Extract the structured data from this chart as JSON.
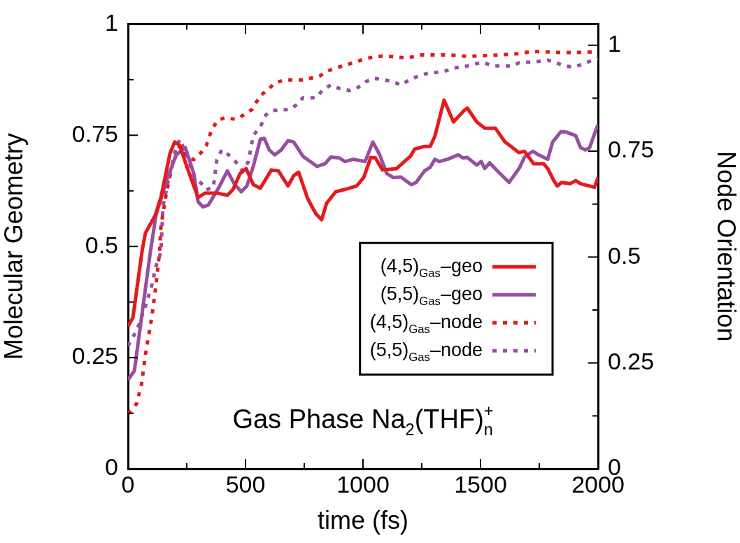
{
  "chart_data": {
    "type": "line",
    "title": "Gas Phase Na$_{2}$(THF)$_{n}$$^{+}$",
    "xlabel": "time (fs)",
    "ylabel": "Molecular Geometry",
    "y2label": "Node Orientation",
    "xlim": [
      0,
      2000
    ],
    "xticks": [
      0,
      {
        "value": 250,
        "label": null
      },
      500,
      {
        "value": 750,
        "label": null
      },
      1000,
      {
        "value": 1250,
        "label": null
      },
      1500,
      {
        "value": 1750,
        "label": null
      },
      2000
    ],
    "ylim": [
      0,
      1
    ],
    "yticks": [
      0,
      {
        "value": 0.125,
        "label": null
      },
      0.25,
      {
        "value": 0.375,
        "label": null
      },
      0.5,
      {
        "value": 0.625,
        "label": null
      },
      0.75,
      {
        "value": 0.875,
        "label": null
      },
      1
    ],
    "y2lim": [
      0,
      1.05
    ],
    "y2ticks": [
      0,
      {
        "value": 0.125,
        "label": null
      },
      0.25,
      {
        "value": 0.375,
        "label": null
      },
      0.5,
      {
        "value": 0.625,
        "label": null
      },
      0.75,
      {
        "value": 0.875,
        "label": null
      },
      1
    ],
    "grid": false,
    "legend": "right",
    "marker": "none",
    "series": [
      {
        "name": "(4,5)$_{Gas}$–geo",
        "color": "#e41a1c",
        "line_style": "solid",
        "x": [
          0,
          21,
          60,
          74,
          116,
          140,
          179,
          199,
          220,
          250,
          298,
          328,
          378,
          423,
          447,
          477,
          503,
          533,
          563,
          610,
          640,
          681,
          705,
          726,
          765,
          800,
          824,
          845,
          884,
          943,
          973,
          1003,
          1033,
          1053,
          1083,
          1143,
          1202,
          1220,
          1262,
          1286,
          1306,
          1345,
          1385,
          1429,
          1444,
          1484,
          1518,
          1563,
          1604,
          1637,
          1663,
          1687,
          1726,
          1768,
          1786,
          1812,
          1827,
          1845,
          1881,
          1905,
          1926,
          1985,
          2000
        ],
        "values": [
          0.32,
          0.34,
          0.49,
          0.53,
          0.57,
          0.61,
          0.71,
          0.735,
          0.727,
          0.68,
          0.61,
          0.62,
          0.62,
          0.615,
          0.628,
          0.664,
          0.675,
          0.639,
          0.631,
          0.672,
          0.67,
          0.636,
          0.659,
          0.667,
          0.607,
          0.573,
          0.56,
          0.597,
          0.623,
          0.631,
          0.636,
          0.655,
          0.7,
          0.699,
          0.672,
          0.675,
          0.703,
          0.719,
          0.725,
          0.725,
          0.748,
          0.829,
          0.78,
          0.805,
          0.811,
          0.78,
          0.766,
          0.766,
          0.735,
          0.722,
          0.711,
          0.714,
          0.686,
          0.686,
          0.675,
          0.648,
          0.636,
          0.644,
          0.641,
          0.648,
          0.641,
          0.633,
          0.655
        ]
      },
      {
        "name": "(5,5)$_{Gas}$–geo",
        "color": "#984ea3",
        "line_style": "solid",
        "x": [
          0,
          27,
          95,
          119,
          161,
          205,
          244,
          280,
          298,
          318,
          342,
          387,
          423,
          452,
          482,
          506,
          533,
          563,
          580,
          601,
          625,
          652,
          681,
          705,
          744,
          804,
          839,
          863,
          899,
          923,
          958,
          1009,
          1042,
          1071,
          1101,
          1128,
          1161,
          1205,
          1226,
          1262,
          1286,
          1306,
          1324,
          1360,
          1405,
          1425,
          1444,
          1484,
          1503,
          1518,
          1539,
          1577,
          1622,
          1667,
          1687,
          1723,
          1747,
          1786,
          1807,
          1842,
          1866,
          1905,
          1926,
          1946,
          1964,
          1985,
          2000
        ],
        "values": [
          0.2,
          0.22,
          0.487,
          0.57,
          0.644,
          0.706,
          0.722,
          0.664,
          0.601,
          0.589,
          0.593,
          0.633,
          0.67,
          0.641,
          0.623,
          0.636,
          0.68,
          0.741,
          0.743,
          0.717,
          0.706,
          0.717,
          0.738,
          0.735,
          0.703,
          0.68,
          0.686,
          0.701,
          0.699,
          0.691,
          0.696,
          0.691,
          0.735,
          0.706,
          0.664,
          0.655,
          0.656,
          0.639,
          0.644,
          0.67,
          0.678,
          0.696,
          0.691,
          0.696,
          0.706,
          0.699,
          0.7,
          0.683,
          0.691,
          0.675,
          0.688,
          0.667,
          0.644,
          0.678,
          0.701,
          0.714,
          0.706,
          0.696,
          0.735,
          0.758,
          0.757,
          0.749,
          0.722,
          0.717,
          0.722,
          0.753,
          0.774
        ]
      },
      {
        "name": "(4,5)$_{Gas}$–node",
        "color": "#e41a1c",
        "line_style": "dotted",
        "axis": "y2",
        "x": [
          0,
          36,
          57,
          74,
          101,
          119,
          134,
          140,
          164,
          190,
          220,
          250,
          280,
          310,
          333,
          357,
          384,
          417,
          458,
          491,
          527,
          563,
          595,
          625,
          667,
          705,
          744,
          815,
          848,
          890,
          929,
          967,
          1003,
          1042,
          1092,
          1143,
          1190,
          1241,
          1310,
          1369,
          1440,
          1500,
          1577,
          1658,
          1717,
          1756,
          1836,
          1917,
          2000
        ],
        "values": [
          0.13,
          0.153,
          0.198,
          0.269,
          0.357,
          0.433,
          0.511,
          0.572,
          0.654,
          0.72,
          0.763,
          0.736,
          0.73,
          0.746,
          0.763,
          0.802,
          0.824,
          0.829,
          0.825,
          0.835,
          0.848,
          0.881,
          0.895,
          0.911,
          0.918,
          0.918,
          0.918,
          0.927,
          0.939,
          0.947,
          0.954,
          0.96,
          0.967,
          0.972,
          0.975,
          0.972,
          0.97,
          0.977,
          0.977,
          0.977,
          0.974,
          0.975,
          0.977,
          0.98,
          0.985,
          0.985,
          0.983,
          0.983,
          0.985
        ]
      },
      {
        "name": "(5,5)$_{Gas}$–node",
        "color": "#984ea3",
        "line_style": "dotted",
        "axis": "y2",
        "x": [
          0,
          40,
          74,
          101,
          119,
          140,
          149,
          176,
          199,
          220,
          250,
          280,
          310,
          333,
          363,
          378,
          399,
          429,
          458,
          488,
          512,
          533,
          563,
          586,
          610,
          646,
          685,
          720,
          744,
          800,
          830,
          863,
          899,
          943,
          973,
          1012,
          1048,
          1092,
          1128,
          1161,
          1196,
          1235,
          1277,
          1315,
          1354,
          1396,
          1429,
          1470,
          1509,
          1548,
          1589,
          1630,
          1667,
          1708,
          1747,
          1786,
          1821,
          1857,
          1896,
          1935,
          1964,
          2000
        ],
        "values": [
          0.29,
          0.33,
          0.384,
          0.433,
          0.478,
          0.511,
          0.621,
          0.692,
          0.746,
          0.778,
          0.741,
          0.692,
          0.675,
          0.659,
          0.664,
          0.73,
          0.753,
          0.741,
          0.725,
          0.703,
          0.725,
          0.787,
          0.807,
          0.835,
          0.845,
          0.848,
          0.848,
          0.86,
          0.876,
          0.876,
          0.895,
          0.906,
          0.898,
          0.893,
          0.898,
          0.914,
          0.922,
          0.918,
          0.914,
          0.906,
          0.918,
          0.927,
          0.934,
          0.936,
          0.94,
          0.947,
          0.949,
          0.955,
          0.96,
          0.952,
          0.951,
          0.951,
          0.959,
          0.96,
          0.962,
          0.965,
          0.959,
          0.951,
          0.949,
          0.955,
          0.962,
          0.969
        ]
      }
    ]
  }
}
